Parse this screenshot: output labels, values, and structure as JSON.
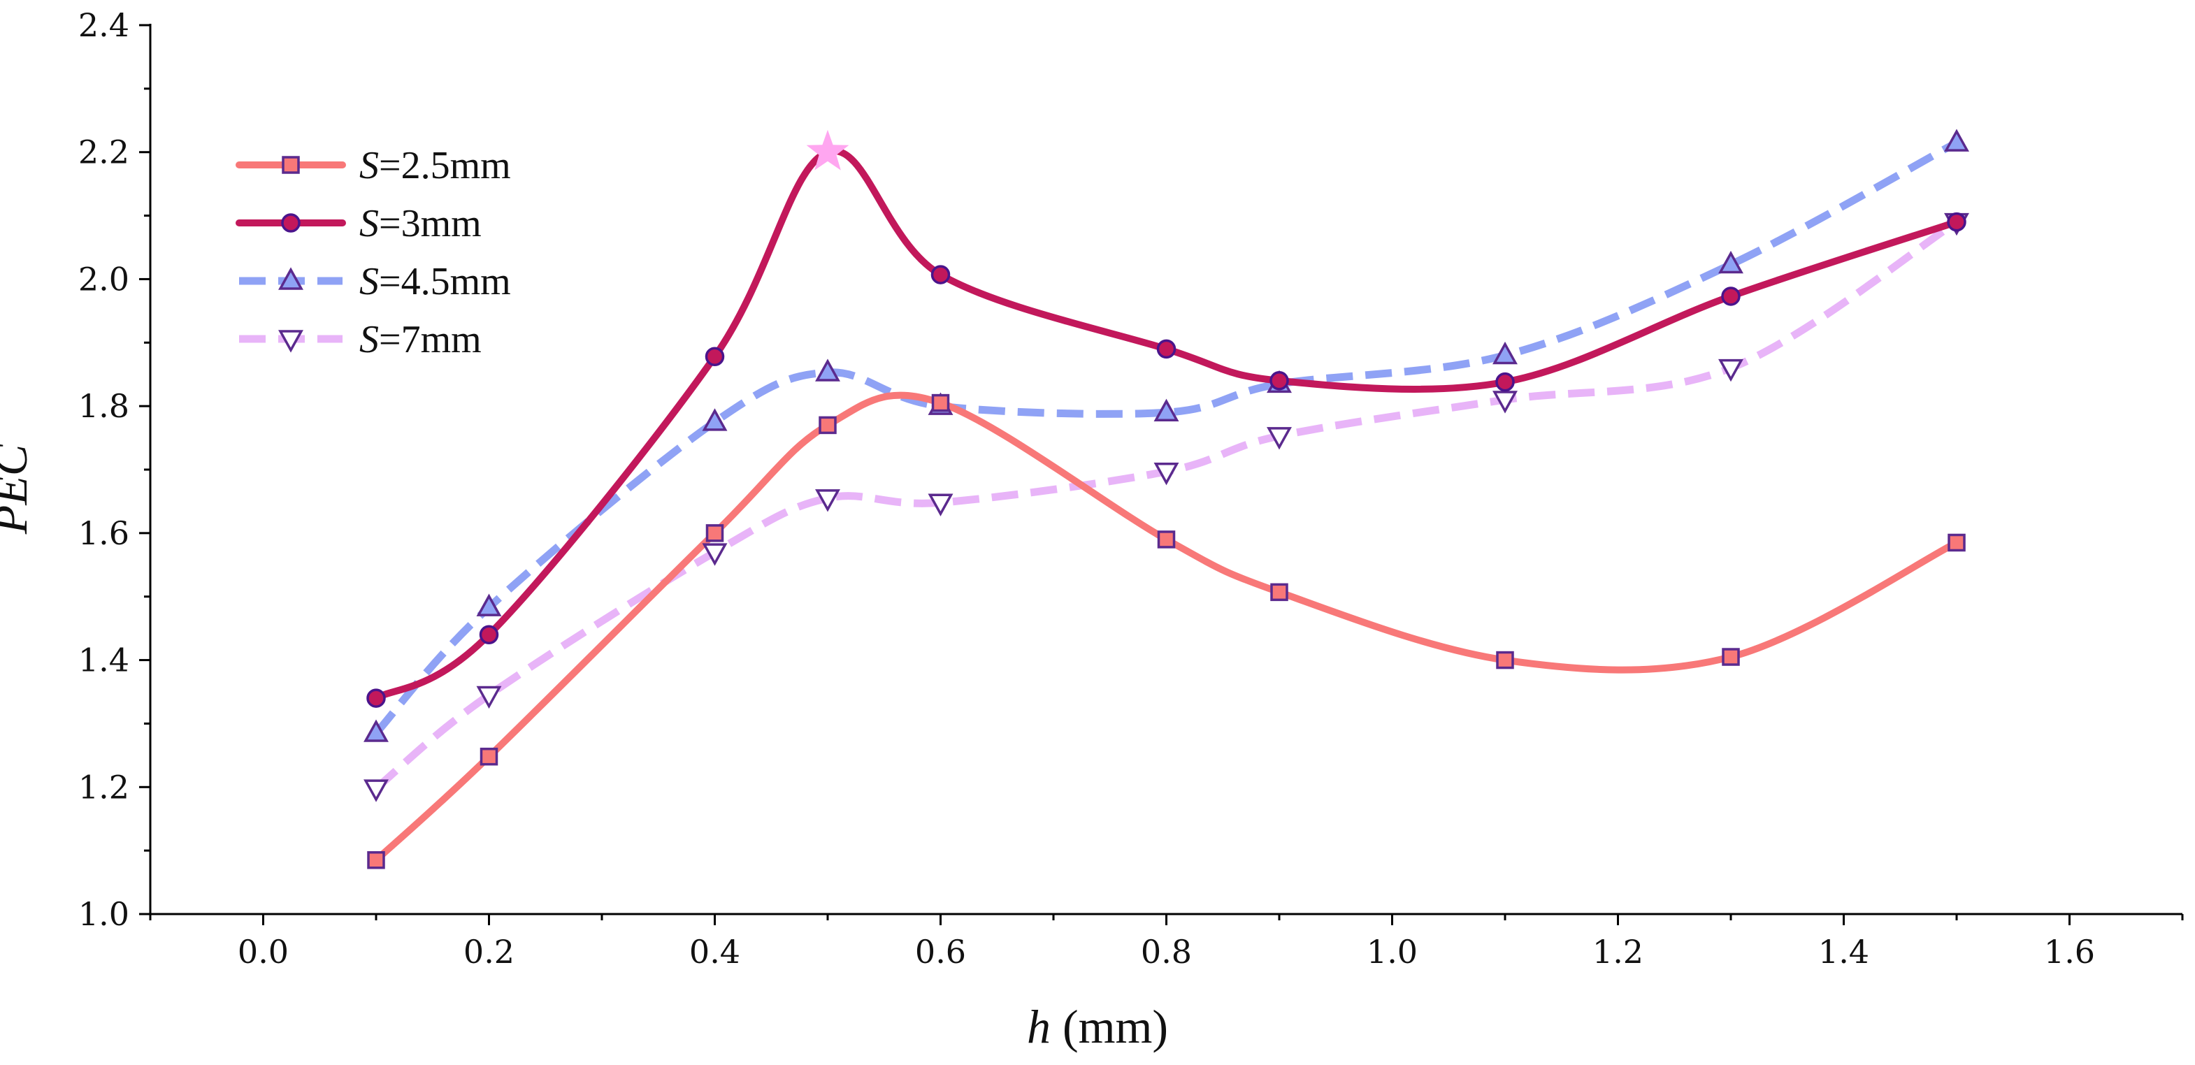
{
  "chart_data": {
    "type": "line",
    "title": "",
    "xlabel_var": "h",
    "xlabel_unit": " (mm)",
    "ylabel": "PEC",
    "xlim": [
      -0.1,
      1.7
    ],
    "ylim": [
      1.0,
      2.4
    ],
    "x_ticks": [
      "0.0",
      "0.2",
      "0.4",
      "0.6",
      "0.8",
      "1.0",
      "1.2",
      "1.4",
      "1.6"
    ],
    "x_tick_values": [
      0.0,
      0.2,
      0.4,
      0.6,
      0.8,
      1.0,
      1.2,
      1.4,
      1.6
    ],
    "y_ticks": [
      "1.0",
      "1.2",
      "1.4",
      "1.6",
      "1.8",
      "2.0",
      "2.2",
      "2.4"
    ],
    "y_tick_values": [
      1.0,
      1.2,
      1.4,
      1.6,
      1.8,
      2.0,
      2.2,
      2.4
    ],
    "grid": false,
    "legend_position": "top-left",
    "x": [
      0.1,
      0.2,
      0.4,
      0.5,
      0.6,
      0.8,
      0.9,
      1.1,
      1.3,
      1.5
    ],
    "series": [
      {
        "name_var": "S",
        "name_rest": "=2.5mm",
        "marker": "square",
        "dash": "solid",
        "line_color": "#F87878",
        "marker_stroke": "#5B2A8E",
        "marker_fill": "#F87878",
        "values": [
          1.085,
          1.248,
          1.6,
          1.77,
          1.805,
          1.59,
          1.507,
          1.4,
          1.405,
          1.585
        ]
      },
      {
        "name_var": "S",
        "name_rest": "=3mm",
        "marker": "circle",
        "dash": "solid",
        "line_color": "#C2185B",
        "marker_stroke": "#4A148C",
        "marker_fill": "#C2185B",
        "values": [
          1.34,
          1.44,
          1.878,
          2.2,
          2.007,
          1.89,
          1.84,
          1.838,
          1.973,
          2.09
        ]
      },
      {
        "name_var": "S",
        "name_rest": "=4.5mm",
        "marker": "triangle-up",
        "dash": "dashed",
        "line_color": "#8FA2F5",
        "marker_stroke": "#5B2A8E",
        "marker_fill": "#8FA2F5",
        "values": [
          1.285,
          1.483,
          1.775,
          1.853,
          1.8,
          1.79,
          1.835,
          1.88,
          2.023,
          2.215
        ]
      },
      {
        "name_var": "S",
        "name_rest": "=7mm",
        "marker": "triangle-down",
        "dash": "dashed",
        "line_color": "#E8B4F8",
        "marker_stroke": "#5B2A8E",
        "marker_fill": "#ffffff",
        "values": [
          1.198,
          1.345,
          1.57,
          1.655,
          1.648,
          1.697,
          1.753,
          1.81,
          1.86,
          2.09
        ]
      }
    ],
    "annotations": [
      {
        "type": "star",
        "x": 0.5,
        "y": 2.2,
        "color": "#FFA6F0",
        "meaning": "peak-value-marker"
      }
    ]
  }
}
